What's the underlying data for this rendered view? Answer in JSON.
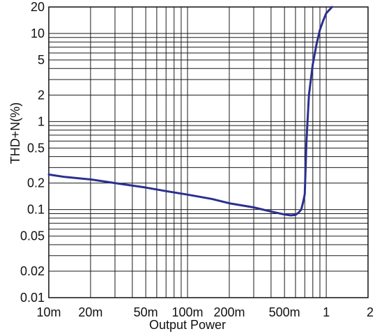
{
  "chart_data": {
    "type": "line",
    "title": "",
    "xlabel": "Output Power",
    "ylabel": "THD+N(%)",
    "x_scale": "log",
    "y_scale": "log",
    "xlim": [
      0.01,
      2
    ],
    "ylim": [
      0.01,
      20
    ],
    "grid": true,
    "legend": "none",
    "x_ticks": [
      {
        "value": 0.01,
        "label": "10m"
      },
      {
        "value": 0.02,
        "label": "20m"
      },
      {
        "value": 0.05,
        "label": "50m"
      },
      {
        "value": 0.1,
        "label": "100m"
      },
      {
        "value": 0.2,
        "label": "200m"
      },
      {
        "value": 0.5,
        "label": "500m"
      },
      {
        "value": 1,
        "label": "1"
      },
      {
        "value": 2,
        "label": "2"
      }
    ],
    "y_ticks": [
      {
        "value": 0.01,
        "label": "0.01"
      },
      {
        "value": 0.02,
        "label": "0.02"
      },
      {
        "value": 0.05,
        "label": "0.05"
      },
      {
        "value": 0.1,
        "label": "0.1"
      },
      {
        "value": 0.2,
        "label": "0.2"
      },
      {
        "value": 0.5,
        "label": "0.5"
      },
      {
        "value": 1,
        "label": "1"
      },
      {
        "value": 2,
        "label": "2"
      },
      {
        "value": 5,
        "label": "5"
      },
      {
        "value": 10,
        "label": "10"
      },
      {
        "value": 20,
        "label": "20"
      }
    ],
    "series": [
      {
        "line_color": "#2b2f8f",
        "x": [
          0.01,
          0.013,
          0.02,
          0.03,
          0.05,
          0.07,
          0.1,
          0.15,
          0.2,
          0.3,
          0.4,
          0.5,
          0.55,
          0.6,
          0.63,
          0.66,
          0.68,
          0.7,
          0.72,
          0.75,
          0.8,
          0.85,
          0.9,
          0.95,
          1.0,
          1.1
        ],
        "y": [
          0.25,
          0.235,
          0.22,
          0.2,
          0.178,
          0.162,
          0.148,
          0.132,
          0.118,
          0.106,
          0.095,
          0.088,
          0.086,
          0.087,
          0.092,
          0.1,
          0.12,
          0.15,
          0.6,
          2.0,
          4.5,
          7.5,
          11.0,
          14.0,
          17.0,
          20.0
        ]
      }
    ],
    "colors": {
      "grid": "#1a1a1a",
      "axis": "#111111",
      "curve": "#2b2f8f"
    }
  }
}
